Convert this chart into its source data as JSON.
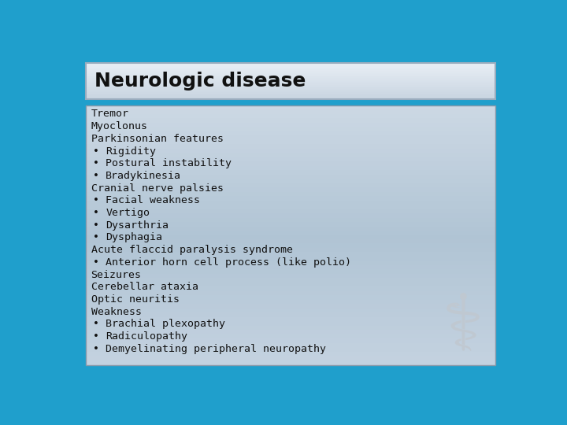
{
  "title": "Neurologic disease",
  "title_fontsize": 18,
  "title_font_weight": "bold",
  "title_color": "#111111",
  "title_bg_top": "#e8eef5",
  "title_bg_bottom": "#c8d4e0",
  "title_border_color": "#9aacbe",
  "content_bg_color": "#b8ccd8",
  "outer_bg_color": "#1f9fcc",
  "content_lines": [
    {
      "text": "Tremor",
      "bullet": false
    },
    {
      "text": "Myoclonus",
      "bullet": false
    },
    {
      "text": "Parkinsonian features",
      "bullet": false
    },
    {
      "text": "Rigidity",
      "bullet": true
    },
    {
      "text": "Postural instability",
      "bullet": true
    },
    {
      "text": "Bradykinesia",
      "bullet": true
    },
    {
      "text": "Cranial nerve palsies",
      "bullet": false
    },
    {
      "text": "Facial weakness",
      "bullet": true
    },
    {
      "text": "Vertigo",
      "bullet": true
    },
    {
      "text": "Dysarthria",
      "bullet": true
    },
    {
      "text": "Dysphagia",
      "bullet": true
    },
    {
      "text": "Acute flaccid paralysis syndrome",
      "bullet": false
    },
    {
      "text": "Anterior horn cell process (like polio)",
      "bullet": true
    },
    {
      "text": "Seizures",
      "bullet": false
    },
    {
      "text": "Cerebellar ataxia",
      "bullet": false
    },
    {
      "text": "Optic neuritis",
      "bullet": false
    },
    {
      "text": "Weakness",
      "bullet": false
    },
    {
      "text": "Brachial plexopathy",
      "bullet": true
    },
    {
      "text": "Radiculopathy",
      "bullet": true
    },
    {
      "text": "Demyelinating peripheral neuropathy",
      "bullet": true
    }
  ],
  "content_fontsize": 9.5,
  "content_font_color": "#111111",
  "font_family": "DejaVu Sans Mono"
}
